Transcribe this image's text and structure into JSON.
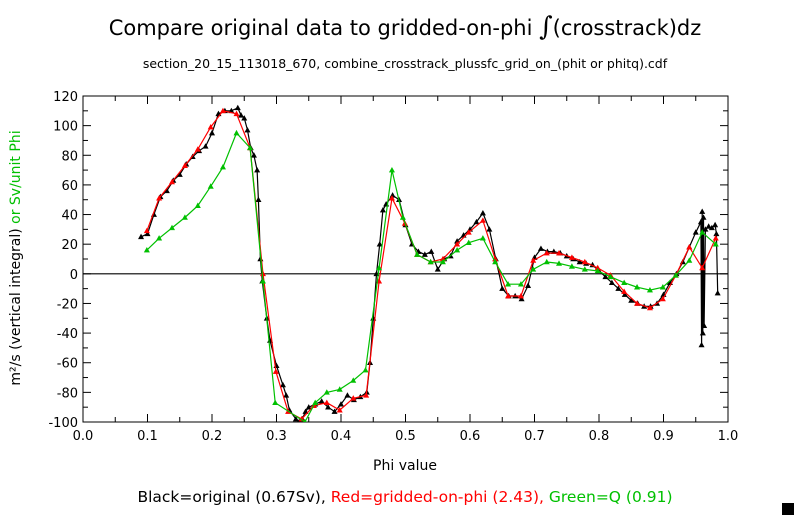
{
  "chart_data": {
    "type": "line",
    "title_prefix": "Compare original data to gridded-on-phi ",
    "title_integral": "∫",
    "title_suffix": "(crosstrack)dz",
    "subtitle": "section_20_15_113018_670, combine_crosstrack_plussfc_grid_on_(phit or phitq).cdf",
    "xlabel": "Phi value",
    "ylabel_main": "m²/s (vertical integral)",
    "ylabel_alt": " or Sv/unit Phi",
    "xlim": [
      0,
      1
    ],
    "ylim": [
      -100,
      120
    ],
    "x_ticks": [
      "0.0",
      "0.1",
      "0.2",
      "0.3",
      "0.4",
      "0.5",
      "0.6",
      "0.7",
      "0.8",
      "0.9",
      "1.0"
    ],
    "y_ticks": [
      "-100",
      "-80",
      "-60",
      "-40",
      "-20",
      "0",
      "20",
      "40",
      "60",
      "80",
      "100",
      "120"
    ],
    "legend": {
      "black": "Black=original (0.67Sv),",
      "red": "Red=gridded-on-phi (2.43),",
      "green": "Green=Q (0.91)"
    },
    "colors": {
      "black": "#000000",
      "red": "#ff0000",
      "green": "#00c000"
    },
    "series": [
      {
        "name": "original",
        "color": "#000000",
        "points": [
          [
            0.09,
            25
          ],
          [
            0.1,
            27
          ],
          [
            0.11,
            40
          ],
          [
            0.12,
            52
          ],
          [
            0.13,
            56
          ],
          [
            0.14,
            63
          ],
          [
            0.15,
            67
          ],
          [
            0.16,
            74
          ],
          [
            0.17,
            79
          ],
          [
            0.18,
            83
          ],
          [
            0.19,
            86
          ],
          [
            0.2,
            95
          ],
          [
            0.21,
            108
          ],
          [
            0.22,
            110
          ],
          [
            0.23,
            110
          ],
          [
            0.24,
            112
          ],
          [
            0.245,
            107
          ],
          [
            0.25,
            105
          ],
          [
            0.255,
            97
          ],
          [
            0.26,
            85
          ],
          [
            0.265,
            80
          ],
          [
            0.27,
            70
          ],
          [
            0.272,
            50
          ],
          [
            0.275,
            10
          ],
          [
            0.278,
            -5
          ],
          [
            0.285,
            -30
          ],
          [
            0.29,
            -45
          ],
          [
            0.3,
            -62
          ],
          [
            0.31,
            -75
          ],
          [
            0.315,
            -82
          ],
          [
            0.32,
            -92
          ],
          [
            0.33,
            -98
          ],
          [
            0.335,
            -100
          ],
          [
            0.34,
            -98
          ],
          [
            0.345,
            -93
          ],
          [
            0.35,
            -90
          ],
          [
            0.36,
            -88
          ],
          [
            0.37,
            -86
          ],
          [
            0.38,
            -90
          ],
          [
            0.39,
            -93
          ],
          [
            0.4,
            -88
          ],
          [
            0.41,
            -82
          ],
          [
            0.42,
            -85
          ],
          [
            0.43,
            -83
          ],
          [
            0.44,
            -80
          ],
          [
            0.445,
            -60
          ],
          [
            0.45,
            -30
          ],
          [
            0.455,
            0
          ],
          [
            0.46,
            20
          ],
          [
            0.465,
            43
          ],
          [
            0.47,
            47
          ],
          [
            0.48,
            53
          ],
          [
            0.49,
            50
          ],
          [
            0.5,
            33
          ],
          [
            0.51,
            20
          ],
          [
            0.52,
            15
          ],
          [
            0.53,
            13
          ],
          [
            0.54,
            15
          ],
          [
            0.55,
            3
          ],
          [
            0.56,
            10
          ],
          [
            0.57,
            12
          ],
          [
            0.58,
            22
          ],
          [
            0.59,
            26
          ],
          [
            0.6,
            30
          ],
          [
            0.61,
            35
          ],
          [
            0.62,
            41
          ],
          [
            0.63,
            30
          ],
          [
            0.64,
            10
          ],
          [
            0.65,
            -10
          ],
          [
            0.66,
            -15
          ],
          [
            0.67,
            -15
          ],
          [
            0.68,
            -17
          ],
          [
            0.69,
            -8
          ],
          [
            0.7,
            11
          ],
          [
            0.71,
            17
          ],
          [
            0.72,
            15
          ],
          [
            0.73,
            15
          ],
          [
            0.74,
            14
          ],
          [
            0.75,
            12
          ],
          [
            0.76,
            10
          ],
          [
            0.77,
            8
          ],
          [
            0.78,
            7
          ],
          [
            0.79,
            6
          ],
          [
            0.8,
            2
          ],
          [
            0.81,
            -2
          ],
          [
            0.82,
            -6
          ],
          [
            0.83,
            -10
          ],
          [
            0.84,
            -14
          ],
          [
            0.85,
            -18
          ],
          [
            0.86,
            -20
          ],
          [
            0.87,
            -22
          ],
          [
            0.88,
            -22
          ],
          [
            0.89,
            -20
          ],
          [
            0.9,
            -14
          ],
          [
            0.91,
            -6
          ],
          [
            0.92,
            0
          ],
          [
            0.93,
            8
          ],
          [
            0.94,
            18
          ],
          [
            0.95,
            28
          ],
          [
            0.958,
            35
          ],
          [
            0.959,
            -48
          ],
          [
            0.96,
            42
          ],
          [
            0.961,
            -40
          ],
          [
            0.962,
            38
          ],
          [
            0.963,
            -35
          ],
          [
            0.965,
            30
          ],
          [
            0.97,
            32
          ],
          [
            0.975,
            31
          ],
          [
            0.98,
            33
          ],
          [
            0.982,
            27
          ],
          [
            0.984,
            -13
          ]
        ]
      },
      {
        "name": "gridded-on-phi",
        "color": "#ff0000",
        "points": [
          [
            0.099,
            29
          ],
          [
            0.118,
            51
          ],
          [
            0.138,
            62
          ],
          [
            0.158,
            73
          ],
          [
            0.178,
            84
          ],
          [
            0.198,
            99
          ],
          [
            0.217,
            110
          ],
          [
            0.238,
            108
          ],
          [
            0.259,
            85
          ],
          [
            0.279,
            0
          ],
          [
            0.299,
            -66
          ],
          [
            0.318,
            -93
          ],
          [
            0.339,
            -98
          ],
          [
            0.358,
            -89
          ],
          [
            0.378,
            -87
          ],
          [
            0.398,
            -92
          ],
          [
            0.419,
            -84
          ],
          [
            0.439,
            -82
          ],
          [
            0.459,
            -5
          ],
          [
            0.479,
            51
          ],
          [
            0.499,
            34
          ],
          [
            0.518,
            13
          ],
          [
            0.539,
            8
          ],
          [
            0.558,
            10
          ],
          [
            0.58,
            20
          ],
          [
            0.598,
            28
          ],
          [
            0.62,
            36
          ],
          [
            0.639,
            10
          ],
          [
            0.659,
            -15
          ],
          [
            0.679,
            -15
          ],
          [
            0.698,
            9
          ],
          [
            0.719,
            14
          ],
          [
            0.738,
            14
          ],
          [
            0.758,
            11
          ],
          [
            0.778,
            8
          ],
          [
            0.798,
            4
          ],
          [
            0.818,
            -1
          ],
          [
            0.839,
            -12
          ],
          [
            0.859,
            -20
          ],
          [
            0.879,
            -23
          ],
          [
            0.899,
            -17
          ],
          [
            0.919,
            -1
          ],
          [
            0.94,
            18
          ],
          [
            0.96,
            4
          ],
          [
            0.981,
            24
          ]
        ]
      },
      {
        "name": "Q",
        "color": "#00c000",
        "points": [
          [
            0.099,
            16
          ],
          [
            0.118,
            24
          ],
          [
            0.138,
            31
          ],
          [
            0.158,
            38
          ],
          [
            0.178,
            46
          ],
          [
            0.198,
            59
          ],
          [
            0.217,
            72
          ],
          [
            0.238,
            95
          ],
          [
            0.259,
            85
          ],
          [
            0.279,
            -5
          ],
          [
            0.298,
            -87
          ],
          [
            0.344,
            -100
          ],
          [
            0.36,
            -87
          ],
          [
            0.378,
            -80
          ],
          [
            0.398,
            -78
          ],
          [
            0.419,
            -72
          ],
          [
            0.438,
            -65
          ],
          [
            0.459,
            4
          ],
          [
            0.479,
            70
          ],
          [
            0.496,
            38
          ],
          [
            0.518,
            13
          ],
          [
            0.539,
            8
          ],
          [
            0.558,
            8
          ],
          [
            0.58,
            16
          ],
          [
            0.598,
            21
          ],
          [
            0.62,
            24
          ],
          [
            0.639,
            8
          ],
          [
            0.659,
            -7
          ],
          [
            0.679,
            -7
          ],
          [
            0.698,
            3
          ],
          [
            0.719,
            8
          ],
          [
            0.738,
            7
          ],
          [
            0.758,
            5
          ],
          [
            0.778,
            3
          ],
          [
            0.798,
            2
          ],
          [
            0.818,
            -2
          ],
          [
            0.839,
            -6
          ],
          [
            0.859,
            -9
          ],
          [
            0.879,
            -11
          ],
          [
            0.899,
            -9
          ],
          [
            0.919,
            -1
          ],
          [
            0.94,
            9
          ],
          [
            0.96,
            28
          ],
          [
            0.981,
            20
          ]
        ]
      }
    ]
  }
}
